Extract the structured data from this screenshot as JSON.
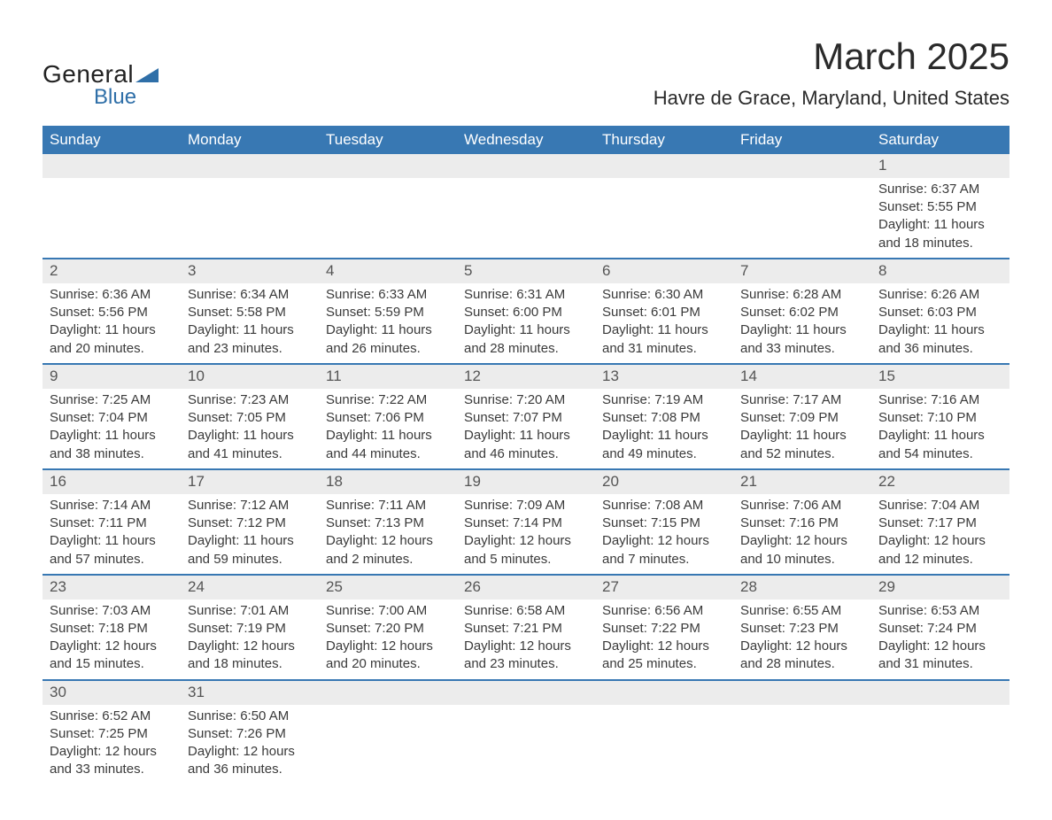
{
  "brand": {
    "line1": "General",
    "line2": "Blue"
  },
  "title": "March 2025",
  "location": "Havre de Grace, Maryland, United States",
  "colors": {
    "header_bg": "#3878b3",
    "header_text": "#ffffff",
    "daynum_bg": "#ececec",
    "row_border": "#3878b3",
    "text": "#3a3a3a",
    "brand_accent": "#2f6fa8"
  },
  "weekdays": [
    "Sunday",
    "Monday",
    "Tuesday",
    "Wednesday",
    "Thursday",
    "Friday",
    "Saturday"
  ],
  "weeks": [
    [
      null,
      null,
      null,
      null,
      null,
      null,
      {
        "n": "1",
        "sunrise": "Sunrise: 6:37 AM",
        "sunset": "Sunset: 5:55 PM",
        "day1": "Daylight: 11 hours",
        "day2": "and 18 minutes."
      }
    ],
    [
      {
        "n": "2",
        "sunrise": "Sunrise: 6:36 AM",
        "sunset": "Sunset: 5:56 PM",
        "day1": "Daylight: 11 hours",
        "day2": "and 20 minutes."
      },
      {
        "n": "3",
        "sunrise": "Sunrise: 6:34 AM",
        "sunset": "Sunset: 5:58 PM",
        "day1": "Daylight: 11 hours",
        "day2": "and 23 minutes."
      },
      {
        "n": "4",
        "sunrise": "Sunrise: 6:33 AM",
        "sunset": "Sunset: 5:59 PM",
        "day1": "Daylight: 11 hours",
        "day2": "and 26 minutes."
      },
      {
        "n": "5",
        "sunrise": "Sunrise: 6:31 AM",
        "sunset": "Sunset: 6:00 PM",
        "day1": "Daylight: 11 hours",
        "day2": "and 28 minutes."
      },
      {
        "n": "6",
        "sunrise": "Sunrise: 6:30 AM",
        "sunset": "Sunset: 6:01 PM",
        "day1": "Daylight: 11 hours",
        "day2": "and 31 minutes."
      },
      {
        "n": "7",
        "sunrise": "Sunrise: 6:28 AM",
        "sunset": "Sunset: 6:02 PM",
        "day1": "Daylight: 11 hours",
        "day2": "and 33 minutes."
      },
      {
        "n": "8",
        "sunrise": "Sunrise: 6:26 AM",
        "sunset": "Sunset: 6:03 PM",
        "day1": "Daylight: 11 hours",
        "day2": "and 36 minutes."
      }
    ],
    [
      {
        "n": "9",
        "sunrise": "Sunrise: 7:25 AM",
        "sunset": "Sunset: 7:04 PM",
        "day1": "Daylight: 11 hours",
        "day2": "and 38 minutes."
      },
      {
        "n": "10",
        "sunrise": "Sunrise: 7:23 AM",
        "sunset": "Sunset: 7:05 PM",
        "day1": "Daylight: 11 hours",
        "day2": "and 41 minutes."
      },
      {
        "n": "11",
        "sunrise": "Sunrise: 7:22 AM",
        "sunset": "Sunset: 7:06 PM",
        "day1": "Daylight: 11 hours",
        "day2": "and 44 minutes."
      },
      {
        "n": "12",
        "sunrise": "Sunrise: 7:20 AM",
        "sunset": "Sunset: 7:07 PM",
        "day1": "Daylight: 11 hours",
        "day2": "and 46 minutes."
      },
      {
        "n": "13",
        "sunrise": "Sunrise: 7:19 AM",
        "sunset": "Sunset: 7:08 PM",
        "day1": "Daylight: 11 hours",
        "day2": "and 49 minutes."
      },
      {
        "n": "14",
        "sunrise": "Sunrise: 7:17 AM",
        "sunset": "Sunset: 7:09 PM",
        "day1": "Daylight: 11 hours",
        "day2": "and 52 minutes."
      },
      {
        "n": "15",
        "sunrise": "Sunrise: 7:16 AM",
        "sunset": "Sunset: 7:10 PM",
        "day1": "Daylight: 11 hours",
        "day2": "and 54 minutes."
      }
    ],
    [
      {
        "n": "16",
        "sunrise": "Sunrise: 7:14 AM",
        "sunset": "Sunset: 7:11 PM",
        "day1": "Daylight: 11 hours",
        "day2": "and 57 minutes."
      },
      {
        "n": "17",
        "sunrise": "Sunrise: 7:12 AM",
        "sunset": "Sunset: 7:12 PM",
        "day1": "Daylight: 11 hours",
        "day2": "and 59 minutes."
      },
      {
        "n": "18",
        "sunrise": "Sunrise: 7:11 AM",
        "sunset": "Sunset: 7:13 PM",
        "day1": "Daylight: 12 hours",
        "day2": "and 2 minutes."
      },
      {
        "n": "19",
        "sunrise": "Sunrise: 7:09 AM",
        "sunset": "Sunset: 7:14 PM",
        "day1": "Daylight: 12 hours",
        "day2": "and 5 minutes."
      },
      {
        "n": "20",
        "sunrise": "Sunrise: 7:08 AM",
        "sunset": "Sunset: 7:15 PM",
        "day1": "Daylight: 12 hours",
        "day2": "and 7 minutes."
      },
      {
        "n": "21",
        "sunrise": "Sunrise: 7:06 AM",
        "sunset": "Sunset: 7:16 PM",
        "day1": "Daylight: 12 hours",
        "day2": "and 10 minutes."
      },
      {
        "n": "22",
        "sunrise": "Sunrise: 7:04 AM",
        "sunset": "Sunset: 7:17 PM",
        "day1": "Daylight: 12 hours",
        "day2": "and 12 minutes."
      }
    ],
    [
      {
        "n": "23",
        "sunrise": "Sunrise: 7:03 AM",
        "sunset": "Sunset: 7:18 PM",
        "day1": "Daylight: 12 hours",
        "day2": "and 15 minutes."
      },
      {
        "n": "24",
        "sunrise": "Sunrise: 7:01 AM",
        "sunset": "Sunset: 7:19 PM",
        "day1": "Daylight: 12 hours",
        "day2": "and 18 minutes."
      },
      {
        "n": "25",
        "sunrise": "Sunrise: 7:00 AM",
        "sunset": "Sunset: 7:20 PM",
        "day1": "Daylight: 12 hours",
        "day2": "and 20 minutes."
      },
      {
        "n": "26",
        "sunrise": "Sunrise: 6:58 AM",
        "sunset": "Sunset: 7:21 PM",
        "day1": "Daylight: 12 hours",
        "day2": "and 23 minutes."
      },
      {
        "n": "27",
        "sunrise": "Sunrise: 6:56 AM",
        "sunset": "Sunset: 7:22 PM",
        "day1": "Daylight: 12 hours",
        "day2": "and 25 minutes."
      },
      {
        "n": "28",
        "sunrise": "Sunrise: 6:55 AM",
        "sunset": "Sunset: 7:23 PM",
        "day1": "Daylight: 12 hours",
        "day2": "and 28 minutes."
      },
      {
        "n": "29",
        "sunrise": "Sunrise: 6:53 AM",
        "sunset": "Sunset: 7:24 PM",
        "day1": "Daylight: 12 hours",
        "day2": "and 31 minutes."
      }
    ],
    [
      {
        "n": "30",
        "sunrise": "Sunrise: 6:52 AM",
        "sunset": "Sunset: 7:25 PM",
        "day1": "Daylight: 12 hours",
        "day2": "and 33 minutes."
      },
      {
        "n": "31",
        "sunrise": "Sunrise: 6:50 AM",
        "sunset": "Sunset: 7:26 PM",
        "day1": "Daylight: 12 hours",
        "day2": "and 36 minutes."
      },
      null,
      null,
      null,
      null,
      null
    ]
  ]
}
